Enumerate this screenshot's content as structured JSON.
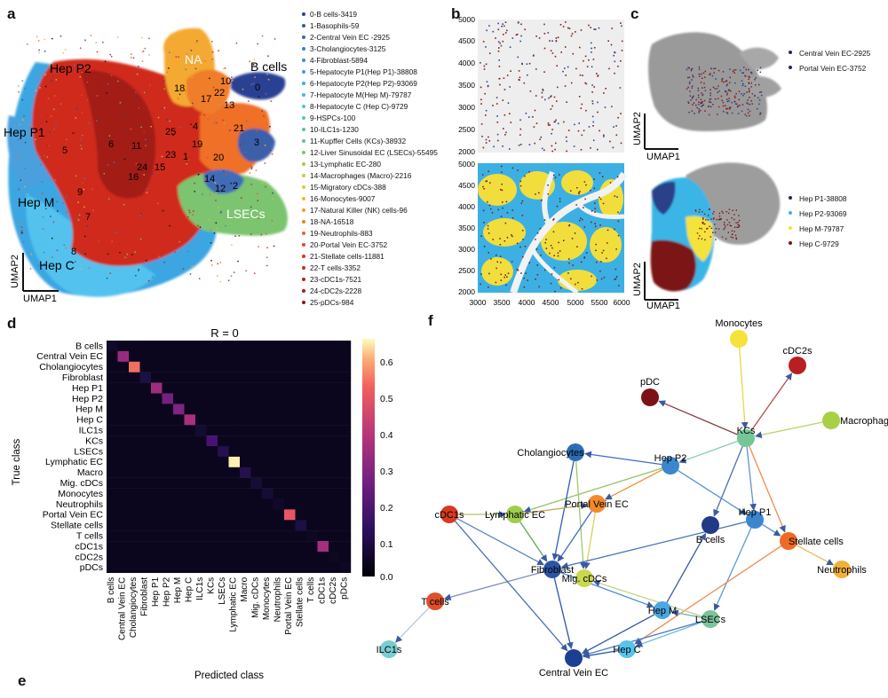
{
  "panels": {
    "a": "a",
    "b": "b",
    "c": "c",
    "d": "d",
    "e": "e",
    "f": "f"
  },
  "panel_a": {
    "cluster_labels": [
      {
        "text": "Hep P2"
      },
      {
        "text": "NA"
      },
      {
        "text": "B cells"
      },
      {
        "text": "Hep P1"
      },
      {
        "text": "Hep M"
      },
      {
        "text": "LSECs"
      },
      {
        "text": "Hep C"
      },
      {
        "text": "0"
      },
      {
        "text": "10"
      },
      {
        "text": "22"
      },
      {
        "text": "18"
      },
      {
        "text": "17"
      },
      {
        "text": "13"
      },
      {
        "text": "4"
      },
      {
        "text": "21"
      },
      {
        "text": "3"
      },
      {
        "text": "25"
      },
      {
        "text": "6"
      },
      {
        "text": "5"
      },
      {
        "text": "11"
      },
      {
        "text": "23"
      },
      {
        "text": "1"
      },
      {
        "text": "24"
      },
      {
        "text": "15"
      },
      {
        "text": "16"
      },
      {
        "text": "20"
      },
      {
        "text": "14"
      },
      {
        "text": "12"
      },
      {
        "text": "2"
      },
      {
        "text": "9"
      },
      {
        "text": "7"
      },
      {
        "text": "8"
      },
      {
        "text": "19"
      }
    ],
    "axis_y": "UMAP2",
    "axis_x": "UMAP1",
    "legend": [
      {
        "text": "0-B cells-3419",
        "color": "#28408f"
      },
      {
        "text": "1-Basophils-59",
        "color": "#2e5aa8"
      },
      {
        "text": "2-Central Vein EC -2925",
        "color": "#3267b5"
      },
      {
        "text": "3-Cholangiocytes-3125",
        "color": "#3a7cc4"
      },
      {
        "text": "4-Fibroblast-5894",
        "color": "#3c8bd0"
      },
      {
        "text": "5-Hepatocyte P1(Hep P1)-38808",
        "color": "#4199d8"
      },
      {
        "text": "6-Hepatocyte P2(Hep P2)-93069",
        "color": "#45a8e0"
      },
      {
        "text": "7-Hepatocyte M(Hep M)-79787",
        "color": "#4bb5e6"
      },
      {
        "text": "8-Hepatocyte C (Hep C)-9729",
        "color": "#4fc0ea"
      },
      {
        "text": "9-HSPCs-100",
        "color": "#50c4c4"
      },
      {
        "text": "10-ILC1s-1230",
        "color": "#55c3a6"
      },
      {
        "text": "11-Kupffer Cells (KCs)-38932",
        "color": "#66c08d"
      },
      {
        "text": "12-Liver Sinusoidal EC (LSECs)-55495",
        "color": "#80c26e"
      },
      {
        "text": "13-Lymphatic EC-280",
        "color": "#a0c85a"
      },
      {
        "text": "14-Macrophages (Macro)-2216",
        "color": "#c3cc4a"
      },
      {
        "text": "15-Migratory cDCs-388",
        "color": "#e0c93d"
      },
      {
        "text": "16-Monocytes-9007",
        "color": "#f2b634"
      },
      {
        "text": "17-Natural Killer (NK) cells-96",
        "color": "#f39a2e"
      },
      {
        "text": "18-NA-16518",
        "color": "#f07e2a"
      },
      {
        "text": "19-Neutrophils-883",
        "color": "#ea6427"
      },
      {
        "text": "20-Portal Vein EC-3752",
        "color": "#e04b24"
      },
      {
        "text": "21-Stellate cells-11881",
        "color": "#d53a22"
      },
      {
        "text": "22-T cells-3352",
        "color": "#c72e20"
      },
      {
        "text": "23-cDC1s-7521",
        "color": "#b6241d"
      },
      {
        "text": "24-cDC2s-2228",
        "color": "#a11c1a"
      },
      {
        "text": "25-pDCs-984",
        "color": "#8a1717"
      }
    ]
  },
  "panel_b": {
    "top": {
      "y_ticks": [
        "5000",
        "4500",
        "4000",
        "3500",
        "3000",
        "2500",
        "2000"
      ]
    },
    "bottom": {
      "y_ticks": [
        "5000",
        "4500",
        "4000",
        "3500",
        "3000",
        "2500",
        "2000"
      ],
      "x_ticks": [
        "3000",
        "3500",
        "4000",
        "4500",
        "5000",
        "5500",
        "6000"
      ]
    }
  },
  "panel_c": {
    "top_legend": [
      {
        "text": "Central Vein EC-2925",
        "color": "#1f2b5c"
      },
      {
        "text": "Portal Vein EC-3752",
        "color": "#1f2b5c"
      }
    ],
    "bottom_legend": [
      {
        "text": "Hep P1-38808",
        "color": "#1f2b5c"
      },
      {
        "text": "Hep P2-93069",
        "color": "#3db3e6"
      },
      {
        "text": "Hep M-79787",
        "color": "#f3e33b"
      },
      {
        "text": "Hep C-9729",
        "color": "#7c1414"
      }
    ],
    "axis_y": "UMAP2",
    "axis_x": "UMAP1"
  },
  "panel_d": {
    "title": "R = 0",
    "xlabel": "Predicted class",
    "ylabel": "True class",
    "classes": [
      "B cells",
      "Central Vein EC",
      "Cholangiocytes",
      "Fibroblast",
      "Hep P1",
      "Hep P2",
      "Hep M",
      "Hep C",
      "ILC1s",
      "KCs",
      "LSECs",
      "Lymphatic EC",
      "Macro",
      "Mig. cDCs",
      "Monocytes",
      "Neutrophils",
      "Portal Vein EC",
      "Stellate cells",
      "T cells",
      "cDC1s",
      "cDC2s",
      "pDCs"
    ],
    "colorbar_ticks": [
      "0.6",
      "0.5",
      "0.4",
      "0.3",
      "0.2",
      "0.1",
      "0.0"
    ],
    "diagonal": [
      0.06,
      0.35,
      0.56,
      0.1,
      0.36,
      0.28,
      0.3,
      0.38,
      0.07,
      0.19,
      0.12,
      0.67,
      0.12,
      0.08,
      0.08,
      0.06,
      0.52,
      0.1,
      0.05,
      0.37,
      0.05,
      0.05
    ],
    "offdiag": 0.04
  },
  "panel_f": {
    "nodes": [
      {
        "id": "Monocytes",
        "label": "Monocytes",
        "color": "#f5e23a"
      },
      {
        "id": "cDC2s",
        "label": "cDC2s",
        "color": "#b81f23"
      },
      {
        "id": "pDC",
        "label": "pDC",
        "color": "#7d1216"
      },
      {
        "id": "Macrophage",
        "label": "Macrophage",
        "color": "#a9cf45"
      },
      {
        "id": "KCs",
        "label": "KCs",
        "color": "#72c795"
      },
      {
        "id": "Cholangiocytes",
        "label": "Cholangiocytes",
        "color": "#2c6db6"
      },
      {
        "id": "HepP2",
        "label": "Hep P2",
        "color": "#3b86cf"
      },
      {
        "id": "cDC1s",
        "label": "cDC1s",
        "color": "#d63a20"
      },
      {
        "id": "LymphaticEC",
        "label": "Lymphatic EC",
        "color": "#9fcd4e"
      },
      {
        "id": "PortalVeinEC",
        "label": "Portal Vein EC",
        "color": "#f08a2b"
      },
      {
        "id": "HepP1",
        "label": "Hep P1",
        "color": "#3c86cf"
      },
      {
        "id": "Bcells",
        "label": "B cells",
        "color": "#213a86"
      },
      {
        "id": "Stellate",
        "label": "Stellate cells",
        "color": "#ef6a24"
      },
      {
        "id": "Neutrophils",
        "label": "Neutrophils",
        "color": "#f1b03a"
      },
      {
        "id": "Fibroblast",
        "label": "Fibroblast",
        "color": "#2b55a4"
      },
      {
        "id": "MigcDCs",
        "label": "Mig. cDCs",
        "color": "#c9d84d"
      },
      {
        "id": "Tcells",
        "label": "T cells",
        "color": "#e0502a"
      },
      {
        "id": "HepM",
        "label": "Hep M",
        "color": "#4aa7df"
      },
      {
        "id": "LSECs",
        "label": "LSECs",
        "color": "#7cc39a"
      },
      {
        "id": "HepC",
        "label": "Hep C",
        "color": "#56c4ec"
      },
      {
        "id": "CentralVeinEC",
        "label": "Central Vein EC",
        "color": "#1c3f93"
      },
      {
        "id": "ILC1s",
        "label": "ILC1s",
        "color": "#79cdd2"
      }
    ],
    "edges": [
      [
        "Monocytes",
        "KCs",
        "#e6d84a"
      ],
      [
        "KCs",
        "cDC2s",
        "#b84a52"
      ],
      [
        "KCs",
        "pDC",
        "#8c3a44"
      ],
      [
        "Macrophage",
        "KCs",
        "#b5d46e"
      ],
      [
        "KCs",
        "HepP2",
        "#7fd0b0"
      ],
      [
        "KCs",
        "Bcells",
        "#4a6fb0"
      ],
      [
        "KCs",
        "Stellate",
        "#f08a50"
      ],
      [
        "KCs",
        "HepP1",
        "#5b93cf"
      ],
      [
        "HepP2",
        "Cholangiocytes",
        "#3b6fc0"
      ],
      [
        "HepP2",
        "PortalVeinEC",
        "#f0902f"
      ],
      [
        "HepP2",
        "HepP1",
        "#5b93cf"
      ],
      [
        "HepP2",
        "LymphaticEC",
        "#8fc56a"
      ],
      [
        "Cholangiocytes",
        "Fibroblast",
        "#2f5eae"
      ],
      [
        "Cholangiocytes",
        "MigcDCs",
        "#9fc86a"
      ],
      [
        "LymphaticEC",
        "Fibroblast",
        "#5fa85a"
      ],
      [
        "cDC1s",
        "Fibroblast",
        "#5a86c0"
      ],
      [
        "cDC1s",
        "LymphaticEC",
        "#b0c070"
      ],
      [
        "PortalVeinEC",
        "Fibroblast",
        "#3e70bf"
      ],
      [
        "PortalVeinEC",
        "MigcDCs",
        "#d8d060"
      ],
      [
        "HepP1",
        "Fibroblast",
        "#3f73bf"
      ],
      [
        "HepP1",
        "Stellate",
        "#5b8fcc"
      ],
      [
        "HepP1",
        "LSECs",
        "#5a9bd3"
      ],
      [
        "Stellate",
        "Neutrophils",
        "#f3b45a"
      ],
      [
        "Stellate",
        "HepC",
        "#f08a50"
      ],
      [
        "Fibroblast",
        "CentralVeinEC",
        "#2c58a8"
      ],
      [
        "Fibroblast",
        "HepM",
        "#4b86c9"
      ],
      [
        "Fibroblast",
        "Tcells",
        "#7a90c0"
      ],
      [
        "Tcells",
        "ILC1s",
        "#b0ccd0"
      ],
      [
        "HepM",
        "CentralVeinEC",
        "#2a56a6"
      ],
      [
        "HepM",
        "Bcells",
        "#3a5aa0"
      ],
      [
        "LSECs",
        "HepC",
        "#6fb8d8"
      ],
      [
        "LSECs",
        "CentralVeinEC",
        "#4a7ebf"
      ],
      [
        "LSECs",
        "HepM",
        "#78b0c8"
      ],
      [
        "LSECs",
        "MigcDCs",
        "#c0d486"
      ],
      [
        "HepC",
        "CentralVeinEC",
        "#2a5aa8"
      ],
      [
        "LymphaticEC",
        "PortalVeinEC",
        "#c6a858"
      ],
      [
        "cDC1s",
        "CentralVeinEC",
        "#4a6fb8"
      ]
    ]
  }
}
